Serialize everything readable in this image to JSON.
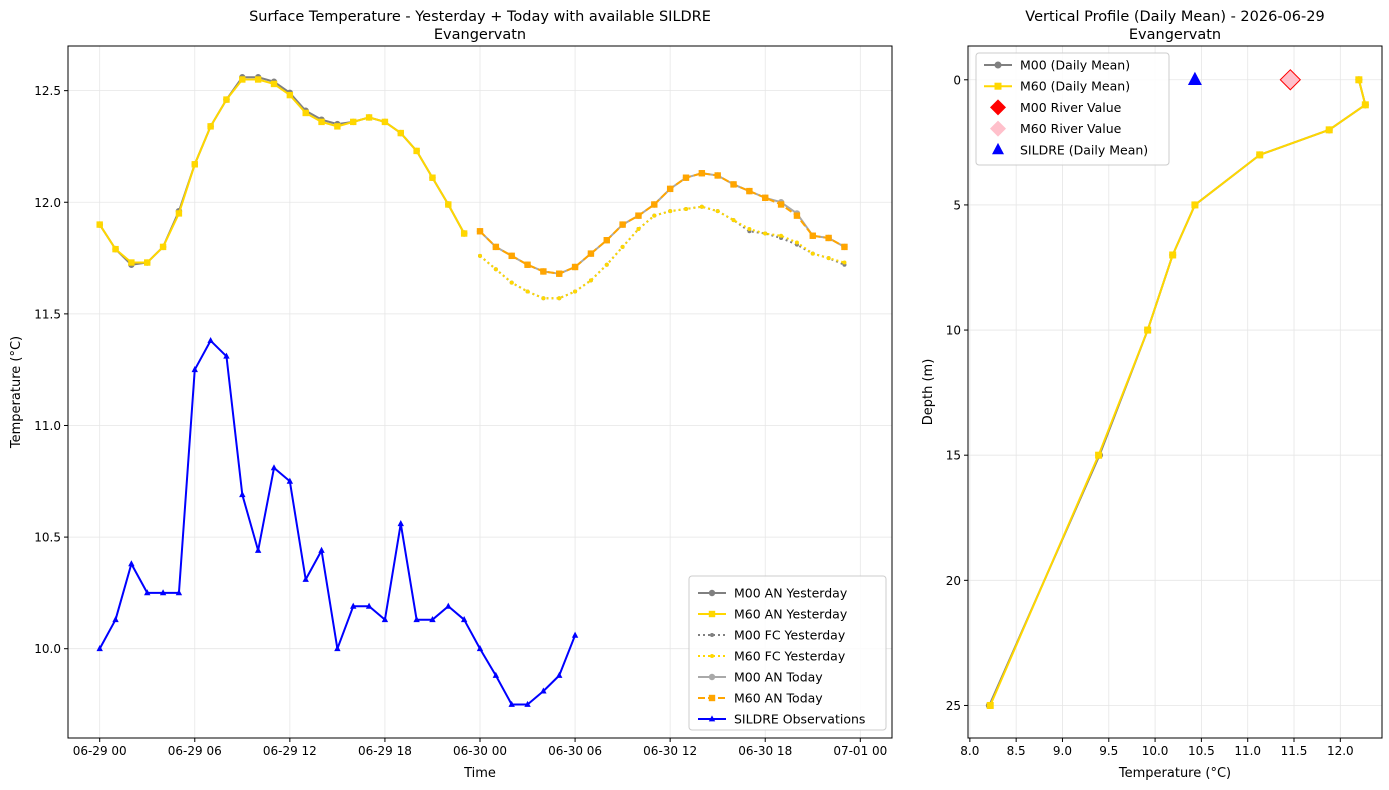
{
  "chart_data": [
    {
      "type": "line",
      "title": "Surface Temperature - Yesterday + Today with available SILDRE",
      "subtitle": "Evangervatn",
      "xlabel": "Time",
      "ylabel": "Temperature (°C)",
      "xlim_hours": [
        -2,
        50
      ],
      "ylim": [
        9.6,
        12.7
      ],
      "x_ticks": [
        {
          "h": 0,
          "label": "06-29 00"
        },
        {
          "h": 6,
          "label": "06-29 06"
        },
        {
          "h": 12,
          "label": "06-29 12"
        },
        {
          "h": 18,
          "label": "06-29 18"
        },
        {
          "h": 24,
          "label": "06-30 00"
        },
        {
          "h": 30,
          "label": "06-30 06"
        },
        {
          "h": 36,
          "label": "06-30 12"
        },
        {
          "h": 42,
          "label": "06-30 18"
        },
        {
          "h": 48,
          "label": "07-01 00"
        }
      ],
      "y_ticks": [
        {
          "v": 10.0,
          "label": "10.0"
        },
        {
          "v": 10.5,
          "label": "10.5"
        },
        {
          "v": 11.0,
          "label": "11.0"
        },
        {
          "v": 11.5,
          "label": "11.5"
        },
        {
          "v": 12.0,
          "label": "12.0"
        },
        {
          "v": 12.5,
          "label": "12.5"
        }
      ],
      "grid": true,
      "legend_position": "lower-right",
      "series": [
        {
          "name": "M00 AN Yesterday",
          "color": "#808080",
          "dash": "solid",
          "marker": "circle",
          "width": 2,
          "x": [
            0,
            1,
            2,
            3,
            4,
            5,
            6,
            7,
            8,
            9,
            10,
            11,
            12,
            13,
            14,
            15,
            16,
            17,
            18,
            19,
            20,
            21,
            22,
            23
          ],
          "y": [
            11.9,
            11.79,
            11.72,
            11.73,
            11.8,
            11.96,
            12.17,
            12.34,
            12.46,
            12.56,
            12.56,
            12.54,
            12.49,
            12.41,
            12.37,
            12.35,
            12.36,
            12.38,
            12.36,
            12.31,
            12.23,
            12.11,
            11.99,
            11.86
          ]
        },
        {
          "name": "M60 AN Yesterday",
          "color": "#FFD700",
          "dash": "solid",
          "marker": "square",
          "width": 2,
          "x": [
            0,
            1,
            2,
            3,
            4,
            5,
            6,
            7,
            8,
            9,
            10,
            11,
            12,
            13,
            14,
            15,
            16,
            17,
            18,
            19,
            20,
            21,
            22,
            23
          ],
          "y": [
            11.9,
            11.79,
            11.73,
            11.73,
            11.8,
            11.95,
            12.17,
            12.34,
            12.46,
            12.55,
            12.55,
            12.53,
            12.48,
            12.4,
            12.36,
            12.34,
            12.36,
            12.38,
            12.36,
            12.31,
            12.23,
            12.11,
            11.99,
            11.86
          ]
        },
        {
          "name": "M00 FC Yesterday",
          "color": "#808080",
          "dash": "dotted",
          "marker": "circle",
          "width": 2,
          "x": [
            24,
            25,
            26,
            27,
            28,
            29,
            30,
            31,
            32,
            33,
            34,
            35,
            36,
            37,
            38,
            39,
            40,
            41,
            42,
            43,
            44,
            45,
            46,
            47
          ],
          "y": [
            11.76,
            11.7,
            11.64,
            11.6,
            11.57,
            11.57,
            11.6,
            11.65,
            11.72,
            11.8,
            11.88,
            11.94,
            11.96,
            11.97,
            11.98,
            11.96,
            11.92,
            11.87,
            11.86,
            11.84,
            11.81,
            11.77,
            11.75,
            11.72
          ]
        },
        {
          "name": "M60 FC Yesterday",
          "color": "#FFD700",
          "dash": "dotted",
          "marker": "circle",
          "width": 2,
          "x": [
            24,
            25,
            26,
            27,
            28,
            29,
            30,
            31,
            32,
            33,
            34,
            35,
            36,
            37,
            38,
            39,
            40,
            41,
            42,
            43,
            44,
            45,
            46,
            47
          ],
          "y": [
            11.76,
            11.7,
            11.64,
            11.6,
            11.57,
            11.57,
            11.6,
            11.65,
            11.72,
            11.8,
            11.88,
            11.94,
            11.96,
            11.97,
            11.98,
            11.96,
            11.92,
            11.88,
            11.86,
            11.85,
            11.82,
            11.77,
            11.75,
            11.73
          ]
        },
        {
          "name": "M00 AN Today",
          "color": "#A9A9A9",
          "dash": "solid",
          "marker": "circle",
          "width": 2,
          "x": [
            24,
            25,
            26,
            27,
            28,
            29,
            30,
            31,
            32,
            33,
            34,
            35,
            36,
            37,
            38,
            39,
            40,
            41,
            42,
            43,
            44,
            45,
            46,
            47
          ],
          "y": [
            11.87,
            11.8,
            11.76,
            11.72,
            11.69,
            11.68,
            11.71,
            11.77,
            11.83,
            11.9,
            11.94,
            11.99,
            12.06,
            12.11,
            12.13,
            12.12,
            12.08,
            12.05,
            12.02,
            12.0,
            11.95,
            11.85,
            11.84,
            11.8
          ]
        },
        {
          "name": "M60 AN Today",
          "color": "#FFA500",
          "dash": "dashed",
          "marker": "square",
          "width": 2,
          "x": [
            24,
            25,
            26,
            27,
            28,
            29,
            30,
            31,
            32,
            33,
            34,
            35,
            36,
            37,
            38,
            39,
            40,
            41,
            42,
            43,
            44,
            45,
            46,
            47
          ],
          "y": [
            11.87,
            11.8,
            11.76,
            11.72,
            11.69,
            11.68,
            11.71,
            11.77,
            11.83,
            11.9,
            11.94,
            11.99,
            12.06,
            12.11,
            12.13,
            12.12,
            12.08,
            12.05,
            12.02,
            11.99,
            11.94,
            11.85,
            11.84,
            11.8
          ]
        },
        {
          "name": "SILDRE Observations",
          "color": "#0000FF",
          "dash": "solid",
          "marker": "triangle",
          "width": 2,
          "x": [
            0,
            1,
            2,
            3,
            4,
            5,
            6,
            7,
            8,
            9,
            10,
            11,
            12,
            13,
            14,
            15,
            16,
            17,
            18,
            19,
            20,
            21,
            22,
            23,
            24,
            25,
            26,
            27,
            28,
            29,
            30
          ],
          "y": [
            10.0,
            10.13,
            10.38,
            10.25,
            10.25,
            10.25,
            11.25,
            11.38,
            11.31,
            10.69,
            10.44,
            10.81,
            10.75,
            10.31,
            10.44,
            10.0,
            10.19,
            10.19,
            10.13,
            10.56,
            10.13,
            10.13,
            10.19,
            10.13,
            10.0,
            9.88,
            9.75,
            9.75,
            9.81,
            9.88,
            10.06
          ]
        }
      ]
    },
    {
      "type": "line",
      "title": "Vertical Profile (Daily Mean) - 2026-06-29",
      "subtitle": "Evangervatn",
      "xlabel": "Temperature (°C)",
      "ylabel": "Depth (m)",
      "xlim": [
        7.98,
        12.45
      ],
      "ylim": [
        26.3,
        -1.35
      ],
      "y_inverted": true,
      "x_ticks": [
        {
          "v": 8.0,
          "label": "8.0"
        },
        {
          "v": 8.5,
          "label": "8.5"
        },
        {
          "v": 9.0,
          "label": "9.0"
        },
        {
          "v": 9.5,
          "label": "9.5"
        },
        {
          "v": 10.0,
          "label": "10.0"
        },
        {
          "v": 10.5,
          "label": "10.5"
        },
        {
          "v": 11.0,
          "label": "11.0"
        },
        {
          "v": 11.5,
          "label": "11.5"
        },
        {
          "v": 12.0,
          "label": "12.0"
        }
      ],
      "y_ticks": [
        {
          "v": 0,
          "label": "0"
        },
        {
          "v": 5,
          "label": "5"
        },
        {
          "v": 10,
          "label": "10"
        },
        {
          "v": 15,
          "label": "15"
        },
        {
          "v": 20,
          "label": "20"
        },
        {
          "v": 25,
          "label": "25"
        }
      ],
      "grid": true,
      "legend_position": "top-left",
      "series": [
        {
          "name": "M00 (Daily Mean)",
          "color": "#808080",
          "marker": "circle",
          "width": 2,
          "temperature": [
            12.2,
            12.27,
            11.88,
            11.13,
            10.43,
            10.19,
            9.92,
            9.4,
            8.21
          ],
          "depth": [
            0,
            1,
            2,
            3,
            5,
            7,
            10,
            15,
            25
          ]
        },
        {
          "name": "M60 (Daily Mean)",
          "color": "#FFD700",
          "marker": "square",
          "width": 2,
          "temperature": [
            12.2,
            12.27,
            11.88,
            11.13,
            10.43,
            10.19,
            9.92,
            9.39,
            8.22
          ],
          "depth": [
            0,
            1,
            2,
            3,
            5,
            7,
            10,
            15,
            25
          ]
        }
      ],
      "points": [
        {
          "name": "M00 River Value",
          "marker": "diamond",
          "color": "#FF0000",
          "temperature": 11.46,
          "depth": 0
        },
        {
          "name": "M60 River Value",
          "marker": "diamond",
          "color": "#FFC0CB",
          "temperature": 11.46,
          "depth": 0
        },
        {
          "name": "SILDRE (Daily Mean)",
          "marker": "triangle",
          "color": "#0000FF",
          "temperature": 10.43,
          "depth": 0
        }
      ]
    }
  ]
}
